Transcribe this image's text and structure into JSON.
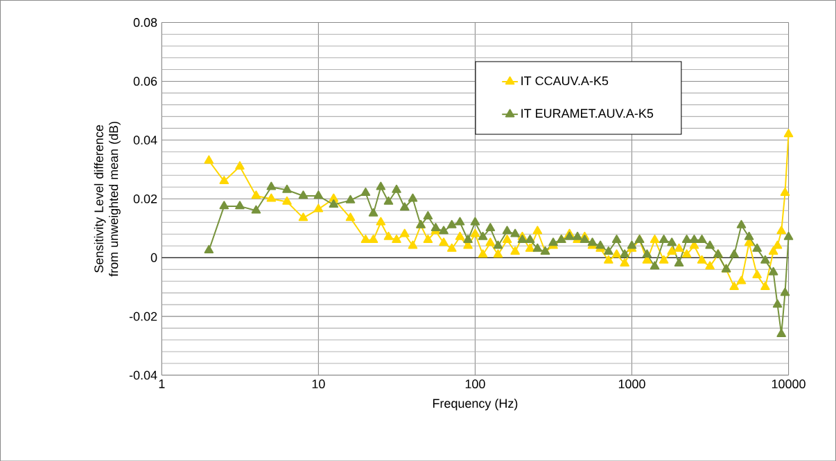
{
  "chart_data": {
    "type": "line",
    "xlabel": "Frequency (Hz)",
    "ylabel": "Sensitivity Level difference from unweighted mean (dB)",
    "log": "x",
    "grid": true,
    "legend": "top right",
    "marker": "triangle",
    "line_style": "solid",
    "xlim": [
      1,
      10000
    ],
    "xticks": [
      1,
      10,
      100,
      1000,
      10000
    ],
    "ylim": [
      -0.04,
      0.08
    ],
    "yticks": [
      -0.04,
      -0.02,
      0,
      0.02,
      0.04,
      0.06,
      0.08
    ],
    "x": [
      2,
      2.5,
      3.15,
      4,
      5,
      6.3,
      8,
      10,
      12.5,
      16,
      20,
      22.4,
      25,
      28,
      31.5,
      35.5,
      40,
      45,
      50,
      56,
      63,
      71,
      80,
      90,
      100,
      112,
      125,
      140,
      160,
      180,
      200,
      224,
      250,
      280,
      315,
      355,
      400,
      450,
      500,
      560,
      630,
      710,
      800,
      900,
      1000,
      1120,
      1250,
      1400,
      1600,
      1800,
      2000,
      2240,
      2500,
      2800,
      3150,
      3550,
      4000,
      4500,
      5000,
      5600,
      6300,
      7100,
      8000,
      8500,
      9000,
      9500,
      10000
    ],
    "series": [
      {
        "name": "IT CCAUV.A-K5",
        "color": "#ffd700",
        "values": [
          0.033,
          0.026,
          0.031,
          0.021,
          0.02,
          0.019,
          0.0135,
          0.0165,
          0.02,
          0.0135,
          0.006,
          0.006,
          0.012,
          0.007,
          0.006,
          0.008,
          0.004,
          0.011,
          0.006,
          0.009,
          0.005,
          0.003,
          0.007,
          0.004,
          0.008,
          0.001,
          0.005,
          0.001,
          0.006,
          0.002,
          0.007,
          0.003,
          0.009,
          0.002,
          0.004,
          0.006,
          0.008,
          0.006,
          0.007,
          0.004,
          0.003,
          -0.001,
          0.001,
          -0.002,
          0.003,
          0.006,
          -0.001,
          0.006,
          -0.001,
          0.002,
          0.003,
          0.001,
          0.004,
          -0.001,
          -0.003,
          0.001,
          -0.004,
          -0.01,
          -0.008,
          0.005,
          -0.006,
          -0.01,
          0.002,
          0.004,
          0.009,
          0.022,
          0.042
        ]
      },
      {
        "name": "IT EURAMET.AUV.A-K5",
        "color": "#77933c",
        "values": [
          0.0025,
          0.0175,
          0.0175,
          0.016,
          0.024,
          0.023,
          0.021,
          0.021,
          0.018,
          0.0195,
          0.022,
          0.015,
          0.024,
          0.019,
          0.023,
          0.017,
          0.02,
          0.011,
          0.014,
          0.01,
          0.009,
          0.011,
          0.012,
          0.006,
          0.012,
          0.007,
          0.01,
          0.004,
          0.009,
          0.008,
          0.006,
          0.006,
          0.003,
          0.002,
          0.005,
          0.006,
          0.007,
          0.007,
          0.006,
          0.005,
          0.004,
          0.002,
          0.006,
          0.001,
          0.004,
          0.006,
          0.001,
          -0.003,
          0.006,
          0.005,
          -0.002,
          0.006,
          0.006,
          0.006,
          0.004,
          0.001,
          -0.004,
          0.001,
          0.011,
          0.007,
          0.003,
          -0.001,
          -0.005,
          -0.016,
          -0.026,
          -0.012,
          0.007
        ]
      }
    ]
  }
}
